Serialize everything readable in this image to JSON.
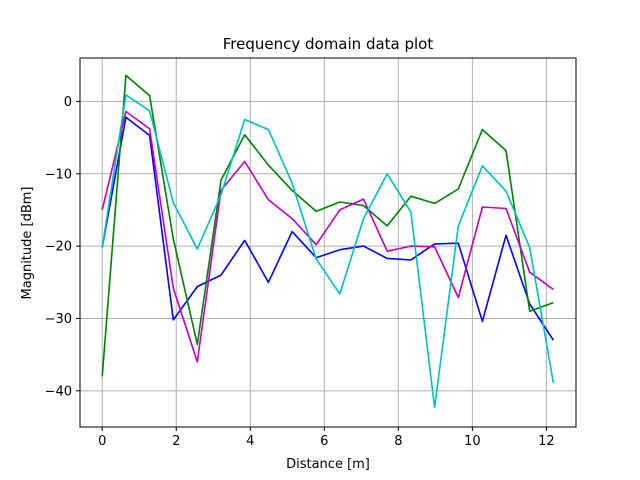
{
  "chart_data": {
    "type": "line",
    "title": "Frequency domain data plot",
    "xlabel": "Distance [m]",
    "ylabel": "Magnitude [dBm]",
    "xlim": [
      -0.6,
      12.8
    ],
    "ylim": [
      -45,
      6
    ],
    "xticks": [
      0,
      2,
      4,
      6,
      8,
      10,
      12
    ],
    "yticks": [
      0,
      -10,
      -20,
      -30,
      -40
    ],
    "grid": true,
    "x": [
      0,
      0.64,
      1.28,
      1.92,
      2.57,
      3.21,
      3.85,
      4.49,
      5.13,
      5.78,
      6.42,
      7.06,
      7.7,
      8.34,
      8.98,
      9.62,
      10.27,
      10.91,
      11.55,
      12.19
    ],
    "series": [
      {
        "color": "#0000ff",
        "values": [
          -20.2,
          -2.2,
          -4.7,
          -30.2,
          -25.6,
          -24.0,
          -19.2,
          -25.0,
          -18.0,
          -21.6,
          -20.5,
          -20.0,
          -21.7,
          -21.9,
          -19.7,
          -19.6,
          -30.4,
          -18.5,
          -28.0,
          -33.0
        ]
      },
      {
        "color": "#008000",
        "values": [
          -38.0,
          3.6,
          0.8,
          -19.0,
          -33.6,
          -10.9,
          -4.6,
          -8.8,
          -12.3,
          -15.2,
          -13.9,
          -14.4,
          -17.2,
          -13.1,
          -14.1,
          -12.1,
          -3.9,
          -6.8,
          -29.0,
          -27.8
        ]
      },
      {
        "color": "#c000c0",
        "values": [
          -15.0,
          -1.4,
          -3.8,
          -25.8,
          -36.0,
          -12.3,
          -8.3,
          -13.6,
          -16.2,
          -19.8,
          -15.0,
          -13.5,
          -20.7,
          -20.0,
          -20.1,
          -27.1,
          -14.6,
          -14.8,
          -23.6,
          -26.0
        ]
      },
      {
        "color": "#00bfbf",
        "values": [
          -20.2,
          0.9,
          -1.3,
          -14.0,
          -20.4,
          -12.9,
          -2.5,
          -3.9,
          -11.3,
          -21.8,
          -26.6,
          -16.2,
          -10.0,
          -15.3,
          -42.3,
          -17.2,
          -8.9,
          -12.4,
          -20.2,
          -38.9
        ]
      }
    ]
  }
}
